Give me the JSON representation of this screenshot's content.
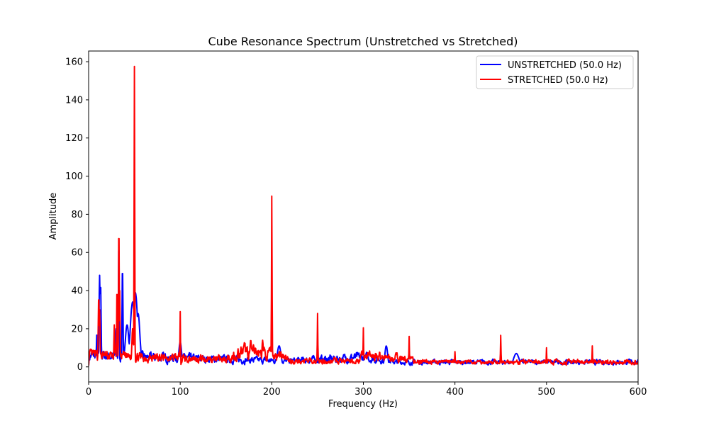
{
  "chart_data": {
    "type": "line",
    "title": "Cube Resonance Spectrum (Unstretched vs Stretched)",
    "xlabel": "Frequency (Hz)",
    "ylabel": "Amplitude",
    "xlim": [
      0,
      600
    ],
    "ylim": [
      -7.9,
      165.6
    ],
    "xticks": [
      0,
      100,
      200,
      300,
      400,
      500,
      600
    ],
    "yticks": [
      0,
      20,
      40,
      60,
      80,
      100,
      120,
      140,
      160
    ],
    "grid": false,
    "legend_position": "top-right",
    "series": [
      {
        "name": "UNSTRETCHED (50.0 Hz)",
        "color": "#0000ff",
        "seed": 7,
        "baseline": [
          [
            0,
            6
          ],
          [
            60,
            5
          ],
          [
            150,
            4
          ],
          [
            215,
            3
          ],
          [
            300,
            5
          ],
          [
            335,
            2.5
          ],
          [
            600,
            2.5
          ]
        ],
        "peaks": [
          [
            12,
            48,
            0.6
          ],
          [
            13,
            44,
            0.6
          ],
          [
            9,
            18,
            0.5
          ],
          [
            33,
            69,
            0.4
          ],
          [
            37,
            53,
            0.5
          ],
          [
            30,
            20,
            0.8
          ],
          [
            42,
            22,
            2
          ],
          [
            48,
            34,
            2.5
          ],
          [
            51,
            39,
            2.5
          ],
          [
            54,
            28,
            2
          ],
          [
            100,
            13,
            1.5
          ],
          [
            208,
            11,
            2
          ],
          [
            325,
            11,
            1.5
          ],
          [
            467,
            7,
            3
          ]
        ]
      },
      {
        "name": "STRETCHED (50.0 Hz)",
        "color": "#ff0000",
        "seed": 13,
        "baseline": [
          [
            0,
            6
          ],
          [
            60,
            5
          ],
          [
            150,
            4
          ],
          [
            170,
            8
          ],
          [
            210,
            6
          ],
          [
            220,
            3
          ],
          [
            295,
            3
          ],
          [
            300,
            6
          ],
          [
            330,
            5
          ],
          [
            365,
            2.5
          ],
          [
            600,
            2.5
          ]
        ],
        "peaks": [
          [
            11,
            38,
            0.5
          ],
          [
            12,
            30,
            0.5
          ],
          [
            28,
            22,
            0.4
          ],
          [
            31,
            43,
            0.4
          ],
          [
            33,
            84,
            0.3
          ],
          [
            34,
            40,
            0.4
          ],
          [
            48,
            20,
            0.8
          ],
          [
            50,
            157.5,
            0.35
          ],
          [
            100,
            29,
            0.3
          ],
          [
            177,
            14,
            1
          ],
          [
            190,
            14,
            0.8
          ],
          [
            200,
            89.5,
            0.3
          ],
          [
            250,
            28,
            0.3
          ],
          [
            300,
            20.5,
            0.3
          ],
          [
            350,
            16,
            0.3
          ],
          [
            400,
            8,
            0.3
          ],
          [
            450,
            16.5,
            0.3
          ],
          [
            500,
            10,
            0.3
          ],
          [
            550,
            11,
            0.3
          ]
        ]
      }
    ]
  }
}
